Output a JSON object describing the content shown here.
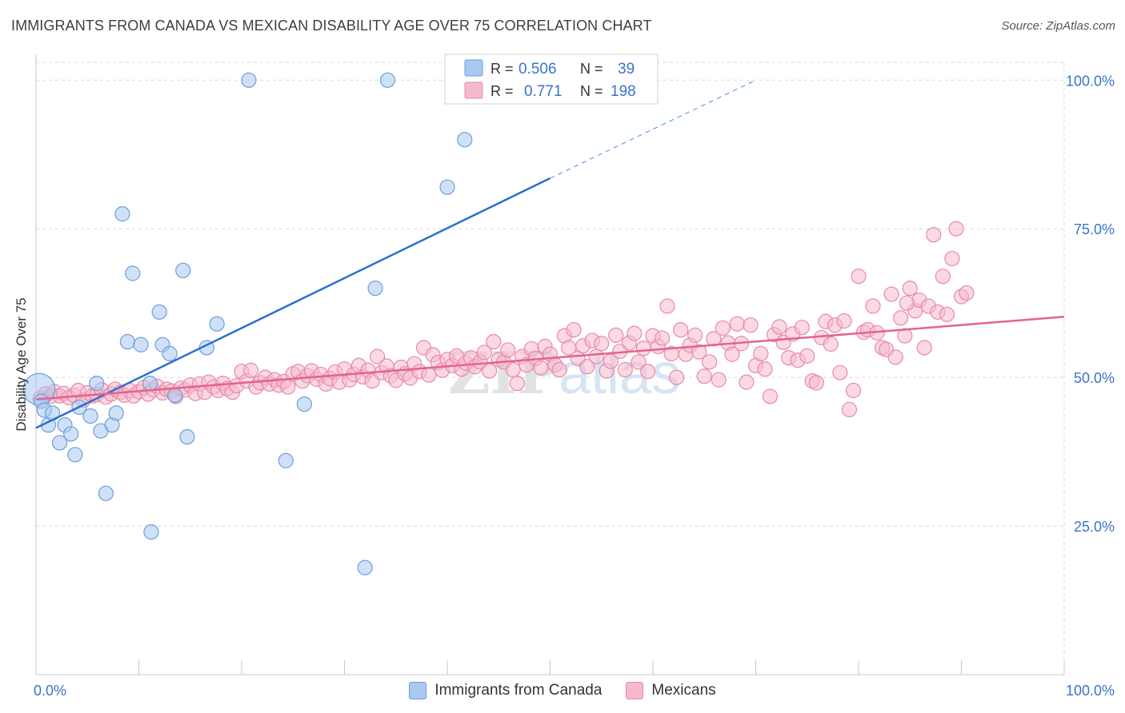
{
  "header": {
    "title": "IMMIGRANTS FROM CANADA VS MEXICAN DISABILITY AGE OVER 75 CORRELATION CHART",
    "source": "Source: ZipAtlas.com"
  },
  "watermark": {
    "zip": "ZIP",
    "atlas": "atlas"
  },
  "colors": {
    "blue_fill": "#a9c9f0",
    "blue_stroke": "#6a9fdc",
    "blue_line": "#2b6fcf",
    "pink_fill": "#f5b9cc",
    "pink_stroke": "#e88aa8",
    "pink_line": "#e4638e",
    "accent_text": "#3b73c9",
    "grid": "#d9d9d9"
  },
  "legend": {
    "r_label": "R =",
    "n_label": "N =",
    "entries": [
      {
        "r": "0.506",
        "n": "39"
      },
      {
        "r": "0.771",
        "n": "198"
      }
    ]
  },
  "chart_data": {
    "type": "scatter",
    "title": "IMMIGRANTS FROM CANADA VS MEXICAN DISABILITY AGE OVER 75 CORRELATION CHART",
    "ylabel": "Disability Age Over 75",
    "xlabel": "",
    "xlim": [
      0,
      100
    ],
    "ylim": [
      0,
      103
    ],
    "x_tick_labels": [
      "0.0%",
      "100.0%"
    ],
    "y_tick_labels": [
      {
        "value": 25,
        "label": "25.0%"
      },
      {
        "value": 50,
        "label": "50.0%"
      },
      {
        "value": 75,
        "label": "75.0%"
      },
      {
        "value": 100,
        "label": "100.0%"
      }
    ],
    "grid": true,
    "legend_position": "top-center",
    "series": [
      {
        "name": "Immigrants from Canada",
        "r": 0.506,
        "n": 39,
        "trend": {
          "x0": 0,
          "y0": 41.5,
          "x1": 50,
          "y1": 83.5,
          "dash_to_x": 70,
          "dash_to_y": 100
        },
        "points": [
          [
            0.3,
            48,
            2.2
          ],
          [
            0.5,
            46,
            1
          ],
          [
            0.8,
            44.5,
            1
          ],
          [
            1.2,
            42,
            1
          ],
          [
            1.6,
            44,
            1
          ],
          [
            2.3,
            39,
            1
          ],
          [
            2.8,
            42,
            1
          ],
          [
            3.4,
            40.5,
            1
          ],
          [
            3.8,
            37,
            1
          ],
          [
            4.2,
            45,
            1
          ],
          [
            5.3,
            43.5,
            1
          ],
          [
            5.9,
            49,
            1
          ],
          [
            6.3,
            41,
            1
          ],
          [
            6.8,
            30.5,
            1
          ],
          [
            7.4,
            42,
            1
          ],
          [
            7.8,
            44,
            1
          ],
          [
            8.4,
            77.5,
            1
          ],
          [
            8.9,
            56,
            1
          ],
          [
            9.4,
            67.5,
            1
          ],
          [
            10.2,
            55.5,
            1
          ],
          [
            11.1,
            49,
            1
          ],
          [
            11.2,
            24,
            1
          ],
          [
            12.0,
            61,
            1
          ],
          [
            12.3,
            55.5,
            1
          ],
          [
            13.0,
            54,
            1
          ],
          [
            13.5,
            47,
            1
          ],
          [
            14.3,
            68,
            1
          ],
          [
            14.7,
            40,
            1
          ],
          [
            16.6,
            55,
            1
          ],
          [
            17.6,
            59,
            1
          ],
          [
            20.7,
            100,
            1
          ],
          [
            24.3,
            36,
            1
          ],
          [
            26.1,
            45.5,
            1
          ],
          [
            32.0,
            18,
            1
          ],
          [
            33.0,
            65,
            1
          ],
          [
            34.2,
            100,
            1
          ],
          [
            40.0,
            82,
            1
          ],
          [
            41.7,
            90,
            1
          ]
        ]
      },
      {
        "name": "Mexicans",
        "r": 0.771,
        "n": 198,
        "trend": {
          "x0": 0,
          "y0": 46.3,
          "x1": 100,
          "y1": 60.2
        },
        "points": [
          [
            0.4,
            46.5
          ],
          [
            0.9,
            47.2
          ],
          [
            1.4,
            46.8
          ],
          [
            1.8,
            47.6
          ],
          [
            2.3,
            46.9
          ],
          [
            2.7,
            47.3
          ],
          [
            3.2,
            46.6
          ],
          [
            3.7,
            47.0
          ],
          [
            4.1,
            47.8
          ],
          [
            4.6,
            46.2
          ],
          [
            5.0,
            47.4
          ],
          [
            5.5,
            46.9
          ],
          [
            5.9,
            47.1
          ],
          [
            6.4,
            47.9
          ],
          [
            6.8,
            46.7
          ],
          [
            7.3,
            47.2
          ],
          [
            7.7,
            48.0
          ],
          [
            8.2,
            47.5
          ],
          [
            8.6,
            47.0
          ],
          [
            9.1,
            47.8
          ],
          [
            9.5,
            46.9
          ],
          [
            10.0,
            47.6
          ],
          [
            10.5,
            48.3
          ],
          [
            10.9,
            47.2
          ],
          [
            11.4,
            47.9
          ],
          [
            11.8,
            48.5
          ],
          [
            12.3,
            47.4
          ],
          [
            12.7,
            48.0
          ],
          [
            13.2,
            47.7
          ],
          [
            13.6,
            46.8
          ],
          [
            14.1,
            48.2
          ],
          [
            14.5,
            47.9
          ],
          [
            15.0,
            48.7
          ],
          [
            15.5,
            47.3
          ],
          [
            15.9,
            48.9
          ],
          [
            16.4,
            47.5
          ],
          [
            16.8,
            49.2
          ],
          [
            17.3,
            48.4
          ],
          [
            17.7,
            47.8
          ],
          [
            18.2,
            49.0
          ],
          [
            18.6,
            48.1
          ],
          [
            19.1,
            47.5
          ],
          [
            19.5,
            48.6
          ],
          [
            20.0,
            51.0
          ],
          [
            20.5,
            49.4
          ],
          [
            20.9,
            51.2
          ],
          [
            21.4,
            48.4
          ],
          [
            21.8,
            49.1
          ],
          [
            22.3,
            50.0
          ],
          [
            22.7,
            48.9
          ],
          [
            23.2,
            49.6
          ],
          [
            23.6,
            48.7
          ],
          [
            24.1,
            49.3
          ],
          [
            24.5,
            48.4
          ],
          [
            25.0,
            50.6
          ],
          [
            25.5,
            51.0
          ],
          [
            25.9,
            49.4
          ],
          [
            26.4,
            50.3
          ],
          [
            26.8,
            51.1
          ],
          [
            27.3,
            49.7
          ],
          [
            27.7,
            50.5
          ],
          [
            28.2,
            48.9
          ],
          [
            28.6,
            49.8
          ],
          [
            29.1,
            50.9
          ],
          [
            29.5,
            49.2
          ],
          [
            30.0,
            51.4
          ],
          [
            30.5,
            49.6
          ],
          [
            30.9,
            50.5
          ],
          [
            31.4,
            52.0
          ],
          [
            31.8,
            50.1
          ],
          [
            32.3,
            51.2
          ],
          [
            32.7,
            49.4
          ],
          [
            33.2,
            53.5
          ],
          [
            33.6,
            50.8
          ],
          [
            34.1,
            51.9
          ],
          [
            34.5,
            50.3
          ],
          [
            35.0,
            49.5
          ],
          [
            35.5,
            51.7
          ],
          [
            35.9,
            50.6
          ],
          [
            36.4,
            49.9
          ],
          [
            36.8,
            52.3
          ],
          [
            37.3,
            51.0
          ],
          [
            37.7,
            55.0
          ],
          [
            38.2,
            50.4
          ],
          [
            38.6,
            53.8
          ],
          [
            39.1,
            52.5
          ],
          [
            39.5,
            51.2
          ],
          [
            40.0,
            53.0
          ],
          [
            40.5,
            52.0
          ],
          [
            40.9,
            53.6
          ],
          [
            41.4,
            51.4
          ],
          [
            41.8,
            52.4
          ],
          [
            42.3,
            53.3
          ],
          [
            42.7,
            51.8
          ],
          [
            43.2,
            52.6
          ],
          [
            43.6,
            54.2
          ],
          [
            44.1,
            51.1
          ],
          [
            44.5,
            56.0
          ],
          [
            45.0,
            53.0
          ],
          [
            45.5,
            52.6
          ],
          [
            45.9,
            54.6
          ],
          [
            46.4,
            51.3
          ],
          [
            46.8,
            49.0
          ],
          [
            47.3,
            53.5
          ],
          [
            47.7,
            52.1
          ],
          [
            48.2,
            54.8
          ],
          [
            48.6,
            53.2
          ],
          [
            49.1,
            51.6
          ],
          [
            49.5,
            55.2
          ],
          [
            50.0,
            53.9
          ],
          [
            50.5,
            52.1
          ],
          [
            50.9,
            51.3
          ],
          [
            51.4,
            57.0
          ],
          [
            51.8,
            55.0
          ],
          [
            52.3,
            58.0
          ],
          [
            52.7,
            53.2
          ],
          [
            53.2,
            55.3
          ],
          [
            53.6,
            51.8
          ],
          [
            54.1,
            56.2
          ],
          [
            54.5,
            53.5
          ],
          [
            55.0,
            55.7
          ],
          [
            55.5,
            51.1
          ],
          [
            55.9,
            52.7
          ],
          [
            56.4,
            57.1
          ],
          [
            56.8,
            54.4
          ],
          [
            57.3,
            51.3
          ],
          [
            57.7,
            55.8
          ],
          [
            58.2,
            57.4
          ],
          [
            58.6,
            52.6
          ],
          [
            59.1,
            54.9
          ],
          [
            59.5,
            51.0
          ],
          [
            60.0,
            57.0
          ],
          [
            60.5,
            55.2
          ],
          [
            60.9,
            56.6
          ],
          [
            61.4,
            62.0
          ],
          [
            61.8,
            54.0
          ],
          [
            62.3,
            50.0
          ],
          [
            62.7,
            58.0
          ],
          [
            63.2,
            53.9
          ],
          [
            63.6,
            55.4
          ],
          [
            64.1,
            57.1
          ],
          [
            64.5,
            54.3
          ],
          [
            65.0,
            50.2
          ],
          [
            65.5,
            52.6
          ],
          [
            65.9,
            56.5
          ],
          [
            66.4,
            49.6
          ],
          [
            66.8,
            58.3
          ],
          [
            67.3,
            55.8
          ],
          [
            67.7,
            53.9
          ],
          [
            68.2,
            59.0
          ],
          [
            68.6,
            55.7
          ],
          [
            69.1,
            49.2
          ],
          [
            69.5,
            58.8
          ],
          [
            70.0,
            52.0
          ],
          [
            70.5,
            54.0
          ],
          [
            70.9,
            51.4
          ],
          [
            71.4,
            46.8
          ],
          [
            71.8,
            57.2
          ],
          [
            72.3,
            58.5
          ],
          [
            72.7,
            55.9
          ],
          [
            73.2,
            53.3
          ],
          [
            73.6,
            57.3
          ],
          [
            74.1,
            52.9
          ],
          [
            74.5,
            58.4
          ],
          [
            75.0,
            53.6
          ],
          [
            75.5,
            49.4
          ],
          [
            75.9,
            49.1
          ],
          [
            76.4,
            56.7
          ],
          [
            76.8,
            59.4
          ],
          [
            77.3,
            55.6
          ],
          [
            77.7,
            58.8
          ],
          [
            78.2,
            50.8
          ],
          [
            78.6,
            59.5
          ],
          [
            79.1,
            44.6
          ],
          [
            79.5,
            47.8
          ],
          [
            80.0,
            67.0
          ],
          [
            80.5,
            57.6
          ],
          [
            80.9,
            58.0
          ],
          [
            81.4,
            62.0
          ],
          [
            81.8,
            57.5
          ],
          [
            82.3,
            55.0
          ],
          [
            82.7,
            54.7
          ],
          [
            83.2,
            64.0
          ],
          [
            83.6,
            53.4
          ],
          [
            84.1,
            60.0
          ],
          [
            84.5,
            57.0
          ],
          [
            85.0,
            65.0
          ],
          [
            85.5,
            61.2
          ],
          [
            85.9,
            63.0
          ],
          [
            86.4,
            55.0
          ],
          [
            86.8,
            62.0
          ],
          [
            87.3,
            74.0
          ],
          [
            87.7,
            61.0
          ],
          [
            88.2,
            67.0
          ],
          [
            88.6,
            60.6
          ],
          [
            89.1,
            70.0
          ],
          [
            89.5,
            75.0
          ],
          [
            90.0,
            63.6
          ],
          [
            90.5,
            64.2
          ],
          [
            84.7,
            62.5
          ]
        ]
      }
    ]
  }
}
